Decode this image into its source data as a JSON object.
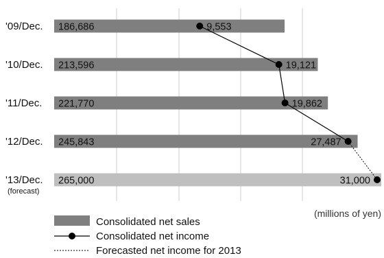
{
  "chart_data": {
    "type": "bar",
    "orientation": "horizontal",
    "categories": [
      "'09/Dec.",
      "'10/Dec.",
      "'11/Dec.",
      "'12/Dec.",
      "'13/Dec."
    ],
    "category_sublabels": [
      "",
      "",
      "",
      "",
      "(forecast)"
    ],
    "units_label": "(millions of yen)",
    "series": [
      {
        "name": "Consolidated net sales",
        "type": "bar",
        "values": [
          186686,
          213596,
          221770,
          245843,
          265000
        ],
        "value_labels": [
          "186,686",
          "213,596",
          "221,770",
          "245,843",
          "265,000"
        ],
        "color": "#7f7f7f",
        "forecast_color": "#bfbfbf"
      },
      {
        "name": "Consolidated net income",
        "type": "line",
        "values": [
          9553,
          19121,
          19862,
          27487,
          31000
        ],
        "value_labels": [
          "9,553",
          "19,121",
          "19,862",
          "27,487",
          "31,000"
        ],
        "color": "#000000"
      }
    ],
    "forecast_series_name": "Forecasted net income for 2013",
    "forecast_index": 4,
    "bar_axis_range": [
      0,
      265000
    ],
    "line_axis_range": [
      0,
      31000
    ],
    "grid": true,
    "legend_position": "bottom-left"
  }
}
